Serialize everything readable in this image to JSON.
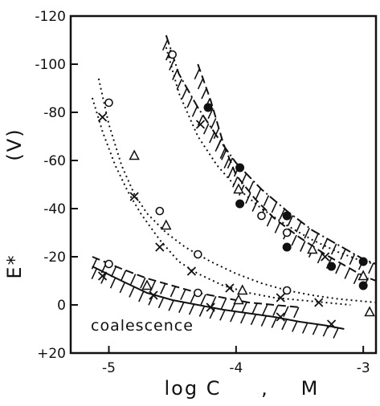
{
  "chart_data": {
    "type": "scatter",
    "title": "",
    "xlabel": "log C",
    "xlabel_sep": ",",
    "xlabel_unit": "M",
    "ylabel_main": "E*",
    "ylabel_unit": "(V)",
    "xlim": [
      -5.3,
      -2.9
    ],
    "ylim": [
      20,
      -120
    ],
    "y_axis_inverted": true,
    "grid": false,
    "legend": "none",
    "x_ticks": [
      {
        "value": -5,
        "label": "-5"
      },
      {
        "value": -4,
        "label": "-4"
      },
      {
        "value": -3,
        "label": "-3"
      }
    ],
    "y_ticks": [
      {
        "value": -120,
        "label": "-120"
      },
      {
        "value": -100,
        "label": "-100"
      },
      {
        "value": -80,
        "label": "-80"
      },
      {
        "value": -60,
        "label": "-60"
      },
      {
        "value": -40,
        "label": "-40"
      },
      {
        "value": -20,
        "label": "-20"
      },
      {
        "value": 0,
        "label": "0"
      },
      {
        "value": 20,
        "label": "+20"
      }
    ],
    "annotations": [
      {
        "text": "coalescence",
        "x": -4.8,
        "y": 12
      }
    ],
    "series": [
      {
        "marker": "open-circle",
        "values": [
          [
            -5.0,
            -84
          ],
          [
            -4.6,
            -39
          ],
          [
            -4.3,
            -21
          ],
          [
            -3.6,
            -6
          ]
        ]
      },
      {
        "marker": "triangle",
        "values": [
          [
            -4.8,
            -62
          ],
          [
            -4.55,
            -33
          ],
          [
            -3.95,
            -6
          ],
          [
            -2.95,
            3
          ]
        ]
      },
      {
        "marker": "cross",
        "values": [
          [
            -5.05,
            -78
          ],
          [
            -4.8,
            -45
          ],
          [
            -4.6,
            -24
          ],
          [
            -4.35,
            -14
          ],
          [
            -4.05,
            -7
          ],
          [
            -3.65,
            -3
          ],
          [
            -3.35,
            -1
          ]
        ]
      },
      {
        "marker": "open-circle",
        "values": [
          [
            -4.5,
            -104
          ],
          [
            -3.8,
            -37
          ],
          [
            -3.6,
            -30
          ]
        ]
      },
      {
        "marker": "filled-circle",
        "values": [
          [
            -4.22,
            -82
          ],
          [
            -3.97,
            -57
          ],
          [
            -3.6,
            -37
          ],
          [
            -3.0,
            -18
          ]
        ]
      },
      {
        "marker": "triangle",
        "values": [
          [
            -3.98,
            -48
          ],
          [
            -3.4,
            -23
          ],
          [
            -3.0,
            -12
          ]
        ]
      },
      {
        "marker": "cross",
        "values": [
          [
            -4.28,
            -75
          ],
          [
            -3.3,
            -20
          ]
        ]
      },
      {
        "marker": "filled-circle",
        "values": [
          [
            -3.97,
            -42
          ],
          [
            -3.6,
            -24
          ],
          [
            -3.25,
            -16
          ],
          [
            -3.0,
            -8
          ]
        ]
      },
      {
        "marker": "open-circle",
        "values": [
          [
            -5.0,
            -17
          ],
          [
            -4.3,
            -5
          ]
        ]
      },
      {
        "marker": "triangle",
        "values": [
          [
            -4.7,
            -8
          ],
          [
            -3.98,
            -2
          ]
        ]
      },
      {
        "marker": "cross",
        "values": [
          [
            -5.05,
            -12
          ],
          [
            -4.65,
            -4
          ],
          [
            -4.2,
            1
          ],
          [
            -3.65,
            5
          ],
          [
            -3.25,
            8
          ]
        ]
      }
    ],
    "curves": [
      {
        "style": "dotted",
        "points": [
          [
            -5.08,
            -94
          ],
          [
            -5.0,
            -75
          ],
          [
            -4.9,
            -58
          ],
          [
            -4.8,
            -46
          ],
          [
            -4.7,
            -38
          ],
          [
            -4.55,
            -30
          ],
          [
            -4.4,
            -24
          ],
          [
            -4.2,
            -18
          ],
          [
            -4.0,
            -13
          ],
          [
            -3.8,
            -9
          ],
          [
            -3.6,
            -6
          ],
          [
            -3.4,
            -4
          ],
          [
            -3.2,
            -2.5
          ],
          [
            -2.9,
            -1
          ]
        ]
      },
      {
        "style": "dotted",
        "points": [
          [
            -5.13,
            -86
          ],
          [
            -5.05,
            -72
          ],
          [
            -4.95,
            -58
          ],
          [
            -4.85,
            -47
          ],
          [
            -4.75,
            -38
          ],
          [
            -4.6,
            -27
          ],
          [
            -4.45,
            -18
          ],
          [
            -4.3,
            -13
          ],
          [
            -4.1,
            -8
          ],
          [
            -3.9,
            -5
          ],
          [
            -3.7,
            -3
          ],
          [
            -3.5,
            -2
          ],
          [
            -3.3,
            -1
          ],
          [
            -3.1,
            0
          ]
        ]
      },
      {
        "style": "dotted",
        "points": [
          [
            -4.55,
            -107
          ],
          [
            -4.45,
            -88
          ],
          [
            -4.3,
            -70
          ],
          [
            -4.15,
            -58
          ],
          [
            -4.0,
            -49
          ],
          [
            -3.8,
            -40
          ],
          [
            -3.6,
            -33
          ],
          [
            -3.4,
            -27
          ],
          [
            -3.2,
            -22
          ],
          [
            -3.0,
            -18
          ],
          [
            -2.9,
            -17
          ]
        ]
      },
      {
        "style": "dash-dot",
        "hatched": true,
        "points": [
          [
            -4.55,
            -112
          ],
          [
            -4.45,
            -96
          ],
          [
            -4.3,
            -82
          ],
          [
            -4.15,
            -70
          ],
          [
            -4.0,
            -59
          ],
          [
            -3.8,
            -48
          ],
          [
            -3.6,
            -39
          ],
          [
            -3.4,
            -31
          ],
          [
            -3.2,
            -25
          ],
          [
            -3.0,
            -19
          ],
          [
            -2.9,
            -17
          ]
        ]
      },
      {
        "style": "dashed",
        "hatched": true,
        "points": [
          [
            -4.3,
            -100
          ],
          [
            -4.2,
            -85
          ],
          [
            -4.1,
            -67
          ],
          [
            -4.0,
            -54
          ],
          [
            -3.85,
            -44
          ],
          [
            -3.7,
            -36
          ],
          [
            -3.5,
            -28
          ],
          [
            -3.3,
            -21
          ],
          [
            -3.1,
            -15
          ],
          [
            -3.0,
            -12
          ],
          [
            -2.9,
            -10
          ]
        ]
      },
      {
        "style": "dashed",
        "hatched": true,
        "points": [
          [
            -5.13,
            -20
          ],
          [
            -4.9,
            -15
          ],
          [
            -4.7,
            -11
          ],
          [
            -4.5,
            -8
          ],
          [
            -4.3,
            -5
          ],
          [
            -4.1,
            -3
          ],
          [
            -3.9,
            -1
          ],
          [
            -3.7,
            0
          ],
          [
            -3.5,
            1
          ]
        ]
      },
      {
        "style": "solid",
        "hatched": true,
        "points": [
          [
            -5.13,
            -16
          ],
          [
            -4.9,
            -10
          ],
          [
            -4.7,
            -5
          ],
          [
            -4.5,
            -2
          ],
          [
            -4.3,
            0
          ],
          [
            -4.1,
            2
          ],
          [
            -3.9,
            3.5
          ],
          [
            -3.7,
            5
          ],
          [
            -3.5,
            7
          ],
          [
            -3.3,
            8.5
          ],
          [
            -3.15,
            10
          ]
        ]
      }
    ]
  }
}
